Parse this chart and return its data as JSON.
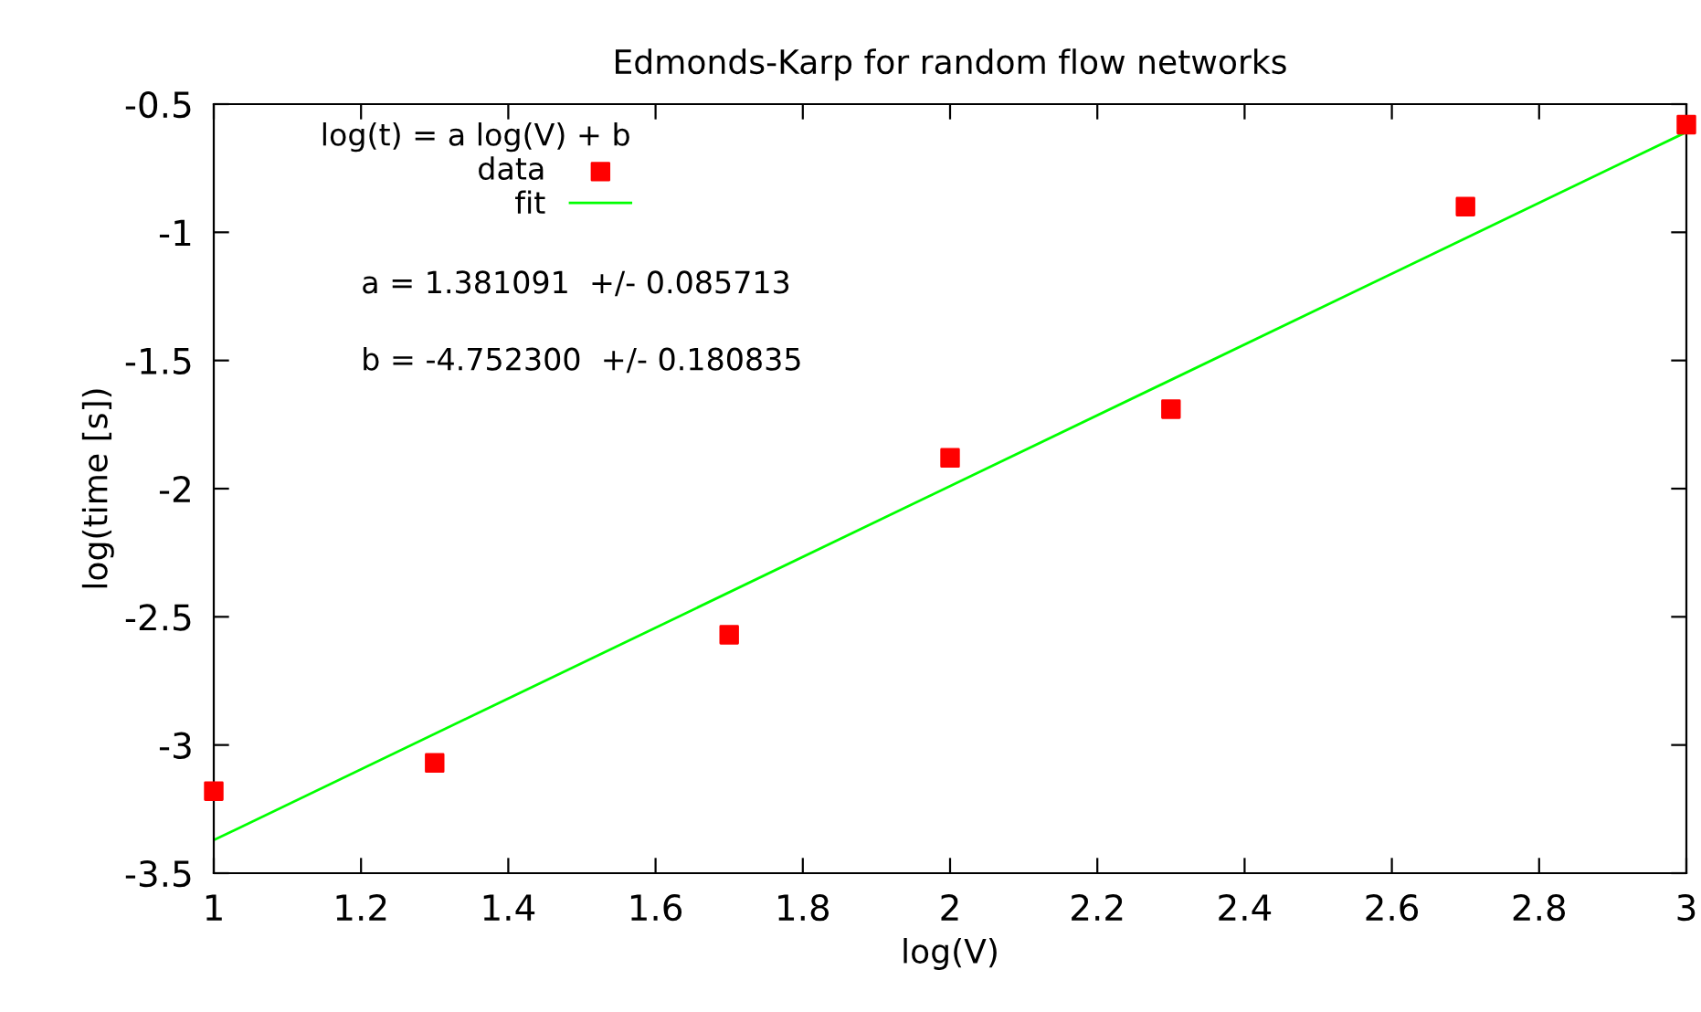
{
  "chart_data": {
    "type": "scatter",
    "title": "Edmonds-Karp for random flow networks",
    "xlabel": "log(V)",
    "ylabel": "log(time [s])",
    "legend_title": "log(t) = a log(V) + b",
    "x": [
      1,
      1.3,
      1.7,
      2,
      2.3,
      2.7,
      3
    ],
    "series": [
      {
        "name": "data",
        "color": "#ff0000",
        "marker": "square",
        "values": [
          -3.18,
          -3.07,
          -2.57,
          -1.88,
          -1.69,
          -0.9,
          -0.58
        ]
      },
      {
        "name": "fit",
        "type": "line",
        "color": "#00ff00",
        "x": [
          1,
          3
        ],
        "values": [
          -3.371,
          -0.609
        ]
      }
    ],
    "annotations": [
      "a = 1.381091  +/- 0.085713",
      "b = -4.752300  +/- 0.180835"
    ],
    "xlim": [
      1,
      3
    ],
    "ylim": [
      -3.5,
      -0.5
    ],
    "xticks": [
      1,
      1.2,
      1.4,
      1.6,
      1.8,
      2,
      2.2,
      2.4,
      2.6,
      2.8,
      3
    ],
    "yticks": [
      -3.5,
      -3,
      -2.5,
      -2,
      -1.5,
      -1,
      -0.5
    ],
    "legend": "top left",
    "grid": false
  }
}
